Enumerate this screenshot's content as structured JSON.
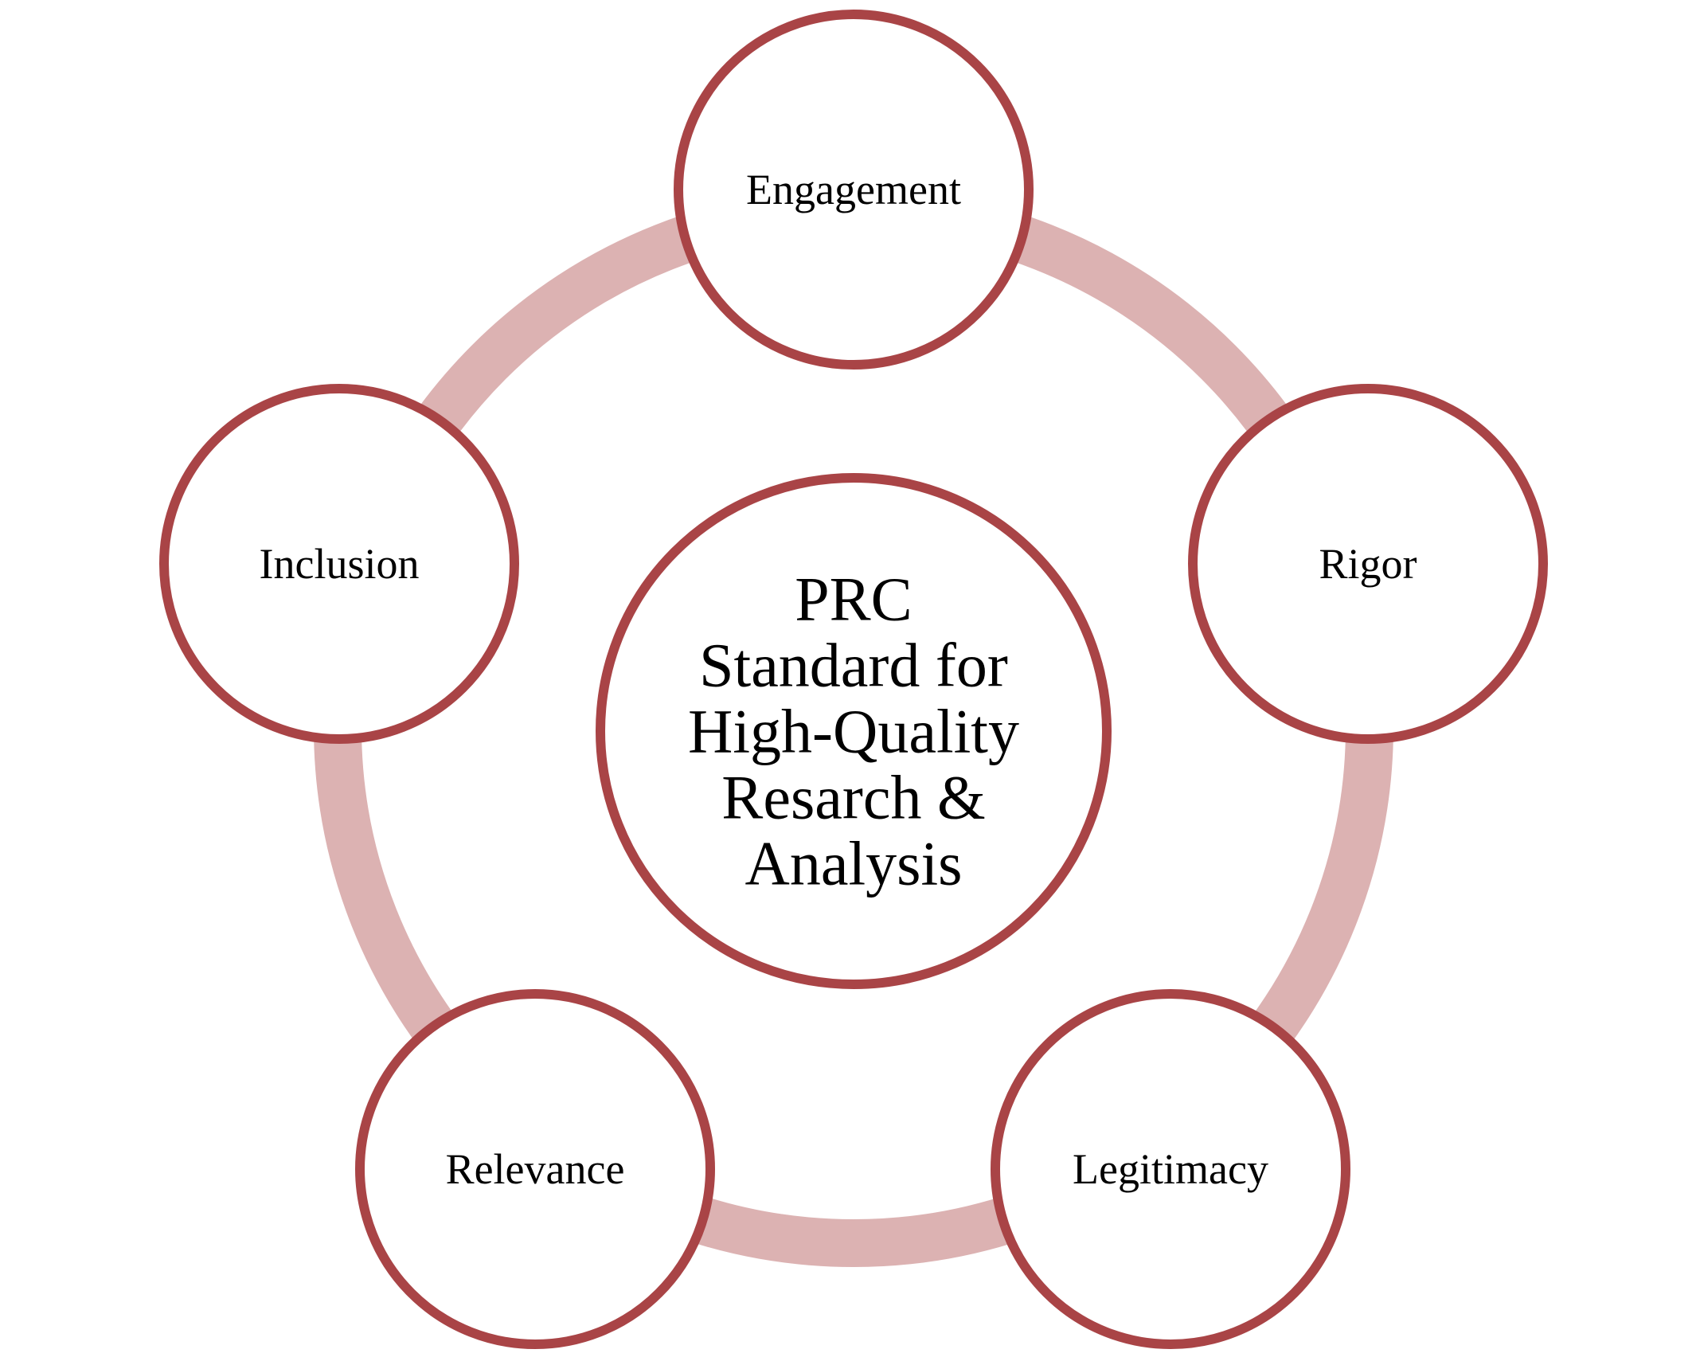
{
  "center": {
    "lines": [
      "PRC",
      "Standard for",
      "High-Quality",
      "Resarch &",
      "Analysis"
    ]
  },
  "nodes": [
    {
      "id": "engagement",
      "label": "Engagement"
    },
    {
      "id": "rigor",
      "label": "Rigor"
    },
    {
      "id": "legitimacy",
      "label": "Legitimacy"
    },
    {
      "id": "relevance",
      "label": "Relevance"
    },
    {
      "id": "inclusion",
      "label": "Inclusion"
    }
  ],
  "colors": {
    "ring": "#dcb2b2",
    "node_stroke": "#a94446",
    "node_fill": "#ffffff",
    "text": "#000000"
  }
}
